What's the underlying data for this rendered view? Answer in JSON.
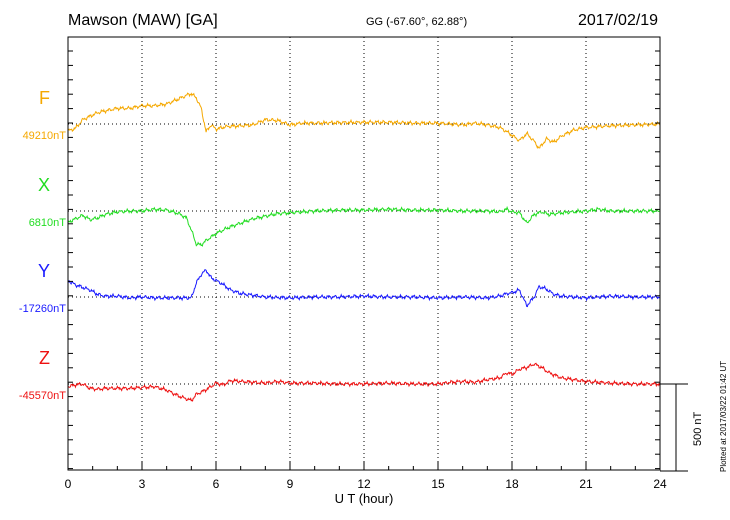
{
  "header": {
    "station": "Mawson (MAW)  [GA]",
    "coords": "GG (-67.60°,  62.88°)",
    "date": "2017/02/19"
  },
  "plotted_note": "Plotted at 2017/03/22 01:42 UT",
  "scale_bar": {
    "label": "500 nT",
    "nT": 500
  },
  "chart_data": {
    "type": "line",
    "title": "Mawson (MAW)  [GA]",
    "xlabel": "U T (hour)",
    "xlim": [
      0,
      24
    ],
    "xticks": [
      0,
      3,
      6,
      9,
      12,
      15,
      18,
      21,
      24
    ],
    "grid": true,
    "channels": [
      {
        "name": "F",
        "color": "#f5a800",
        "base_label": "49210nT",
        "points": [
          [
            0,
            -40
          ],
          [
            0.3,
            -25
          ],
          [
            0.6,
            25
          ],
          [
            0.9,
            45
          ],
          [
            1.2,
            65
          ],
          [
            1.5,
            75
          ],
          [
            2,
            90
          ],
          [
            2.5,
            90
          ],
          [
            3,
            105
          ],
          [
            3.5,
            105
          ],
          [
            4,
            115
          ],
          [
            4.5,
            145
          ],
          [
            4.8,
            165
          ],
          [
            5.0,
            175
          ],
          [
            5.2,
            150
          ],
          [
            5.4,
            90
          ],
          [
            5.6,
            -45
          ],
          [
            5.8,
            -5
          ],
          [
            6,
            -30
          ],
          [
            6.4,
            -15
          ],
          [
            7,
            -10
          ],
          [
            7.5,
            -5
          ],
          [
            8,
            25
          ],
          [
            8.5,
            20
          ],
          [
            9,
            -5
          ],
          [
            9.5,
            5
          ],
          [
            10,
            5
          ],
          [
            11,
            8
          ],
          [
            12,
            10
          ],
          [
            13,
            10
          ],
          [
            14,
            5
          ],
          [
            15,
            5
          ],
          [
            16,
            -5
          ],
          [
            16.5,
            5
          ],
          [
            17,
            -5
          ],
          [
            17.5,
            -20
          ],
          [
            17.8,
            -45
          ],
          [
            18,
            -65
          ],
          [
            18.3,
            -95
          ],
          [
            18.6,
            -55
          ],
          [
            18.9,
            -100
          ],
          [
            19.1,
            -140
          ],
          [
            19.4,
            -85
          ],
          [
            19.7,
            -105
          ],
          [
            20,
            -70
          ],
          [
            20.5,
            -35
          ],
          [
            21,
            -20
          ],
          [
            21.5,
            -15
          ],
          [
            22,
            -10
          ],
          [
            23,
            -5
          ],
          [
            24,
            0
          ]
        ]
      },
      {
        "name": "X",
        "color": "#22dd22",
        "base_label": "6810nT",
        "points": [
          [
            0,
            -65
          ],
          [
            0.3,
            -45
          ],
          [
            0.6,
            -25
          ],
          [
            0.9,
            -50
          ],
          [
            1.2,
            -40
          ],
          [
            1.5,
            -20
          ],
          [
            2,
            -5
          ],
          [
            2.5,
            0
          ],
          [
            3,
            0
          ],
          [
            3.5,
            10
          ],
          [
            4,
            5
          ],
          [
            4.5,
            -15
          ],
          [
            4.8,
            -40
          ],
          [
            5.0,
            -110
          ],
          [
            5.2,
            -190
          ],
          [
            5.4,
            -195
          ],
          [
            5.6,
            -170
          ],
          [
            6,
            -130
          ],
          [
            6.5,
            -95
          ],
          [
            7,
            -70
          ],
          [
            7.5,
            -45
          ],
          [
            8,
            -30
          ],
          [
            8.5,
            -15
          ],
          [
            9,
            -10
          ],
          [
            9.5,
            -5
          ],
          [
            10,
            0
          ],
          [
            11,
            5
          ],
          [
            12,
            5
          ],
          [
            13,
            10
          ],
          [
            14,
            5
          ],
          [
            15,
            5
          ],
          [
            16,
            0
          ],
          [
            17,
            0
          ],
          [
            17.5,
            -5
          ],
          [
            17.8,
            10
          ],
          [
            18,
            -5
          ],
          [
            18.3,
            -10
          ],
          [
            18.6,
            -70
          ],
          [
            18.9,
            -20
          ],
          [
            19.2,
            -5
          ],
          [
            19.5,
            -20
          ],
          [
            20,
            -10
          ],
          [
            20.5,
            -5
          ],
          [
            21,
            0
          ],
          [
            21.5,
            10
          ],
          [
            22,
            0
          ],
          [
            23,
            0
          ],
          [
            24,
            0
          ]
        ]
      },
      {
        "name": "Y",
        "color": "#1a1aff",
        "base_label": "-17260nT",
        "points": [
          [
            0,
            95
          ],
          [
            0.3,
            70
          ],
          [
            0.6,
            55
          ],
          [
            0.9,
            40
          ],
          [
            1.2,
            15
          ],
          [
            1.5,
            5
          ],
          [
            2,
            5
          ],
          [
            2.5,
            -5
          ],
          [
            3,
            0
          ],
          [
            3.5,
            -5
          ],
          [
            4,
            -5
          ],
          [
            4.5,
            -5
          ],
          [
            5.0,
            -5
          ],
          [
            5.2,
            80
          ],
          [
            5.4,
            130
          ],
          [
            5.6,
            155
          ],
          [
            5.8,
            110
          ],
          [
            6.2,
            80
          ],
          [
            6.6,
            40
          ],
          [
            7,
            20
          ],
          [
            7.5,
            10
          ],
          [
            8,
            0
          ],
          [
            9,
            -5
          ],
          [
            10,
            0
          ],
          [
            11,
            0
          ],
          [
            12,
            5
          ],
          [
            13,
            0
          ],
          [
            14,
            0
          ],
          [
            15,
            -5
          ],
          [
            16,
            0
          ],
          [
            17,
            -5
          ],
          [
            17.5,
            5
          ],
          [
            17.8,
            20
          ],
          [
            18,
            25
          ],
          [
            18.3,
            40
          ],
          [
            18.6,
            -50
          ],
          [
            18.9,
            0
          ],
          [
            19.1,
            60
          ],
          [
            19.4,
            45
          ],
          [
            19.7,
            15
          ],
          [
            20,
            5
          ],
          [
            20.5,
            0
          ],
          [
            21,
            -5
          ],
          [
            21.5,
            0
          ],
          [
            22,
            5
          ],
          [
            23,
            0
          ],
          [
            24,
            0
          ]
        ]
      },
      {
        "name": "Z",
        "color": "#ee1111",
        "base_label": "-45570nT",
        "points": [
          [
            0,
            -15
          ],
          [
            0.3,
            -5
          ],
          [
            0.6,
            0
          ],
          [
            0.9,
            -25
          ],
          [
            1.2,
            -30
          ],
          [
            1.5,
            -25
          ],
          [
            2,
            -25
          ],
          [
            2.5,
            -25
          ],
          [
            3,
            -20
          ],
          [
            3.5,
            -15
          ],
          [
            4,
            -35
          ],
          [
            4.5,
            -70
          ],
          [
            4.8,
            -85
          ],
          [
            5.0,
            -95
          ],
          [
            5.2,
            -60
          ],
          [
            5.5,
            -40
          ],
          [
            5.8,
            -15
          ],
          [
            6,
            5
          ],
          [
            6.3,
            -5
          ],
          [
            6.6,
            20
          ],
          [
            7,
            15
          ],
          [
            7.5,
            10
          ],
          [
            8,
            5
          ],
          [
            8.5,
            15
          ],
          [
            9,
            5
          ],
          [
            9.5,
            5
          ],
          [
            10,
            5
          ],
          [
            11,
            0
          ],
          [
            12,
            0
          ],
          [
            13,
            5
          ],
          [
            14,
            0
          ],
          [
            15,
            0
          ],
          [
            15.5,
            10
          ],
          [
            16,
            15
          ],
          [
            16.5,
            10
          ],
          [
            17,
            25
          ],
          [
            17.5,
            35
          ],
          [
            17.8,
            65
          ],
          [
            18,
            55
          ],
          [
            18.3,
            85
          ],
          [
            18.6,
            95
          ],
          [
            18.9,
            115
          ],
          [
            19.2,
            95
          ],
          [
            19.5,
            65
          ],
          [
            20,
            35
          ],
          [
            20.5,
            25
          ],
          [
            21,
            15
          ],
          [
            21.5,
            10
          ],
          [
            22,
            5
          ],
          [
            23,
            0
          ],
          [
            24,
            0
          ]
        ]
      }
    ]
  }
}
